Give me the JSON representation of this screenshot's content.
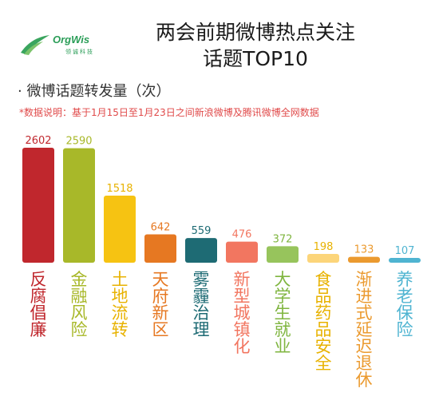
{
  "logo": {
    "name": "OrgWis",
    "sub": "领诚科技"
  },
  "title_line1": "两会前期微博热点关注",
  "title_line2": "话题TOP10",
  "subtitle": "· 微博话题转发量（次）",
  "note": "*数据说明：基于1月15日至1月23日之间新浪微博及腾讯微博全网数据",
  "chart_data": {
    "type": "bar",
    "categories": [
      "反腐倡廉",
      "金融风险",
      "土地流转",
      "天府新区",
      "雾霾治理",
      "新型城镇化",
      "大学生就业",
      "食品药品安全",
      "渐进式延迟退休",
      "养老保险"
    ],
    "values": [
      2602,
      2590,
      1518,
      642,
      559,
      476,
      372,
      198,
      133,
      107
    ],
    "colors": [
      "#c0272d",
      "#a8b829",
      "#f6c312",
      "#e67822",
      "#1e6b74",
      "#f27660",
      "#97c45c",
      "#fcd57a",
      "#eb9a2f",
      "#4fb4d1"
    ],
    "label_colors": [
      "#c0272d",
      "#a8b829",
      "#e8b200",
      "#e67822",
      "#1e6b74",
      "#f27660",
      "#7fb53f",
      "#e8b200",
      "#eb9a2f",
      "#4fb4d1"
    ],
    "ylim": [
      0,
      2800
    ]
  }
}
